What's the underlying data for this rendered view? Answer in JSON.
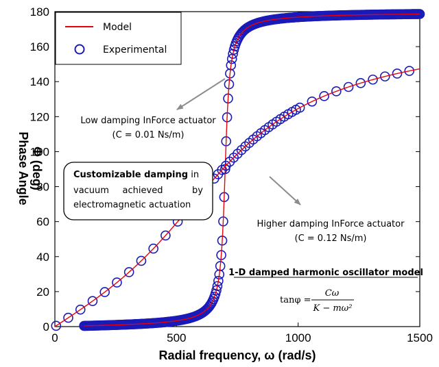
{
  "chart_data": {
    "type": "scatter",
    "xlabel": "Radial frequency, ω (rad/s)",
    "ylabel_line1": "Phase Angle",
    "ylabel_line2": "Φ (deg)",
    "xlim": [
      0,
      1500
    ],
    "ylim": [
      0,
      180
    ],
    "xticks": [
      0,
      500,
      1000,
      1500
    ],
    "yticks": [
      0,
      20,
      40,
      60,
      80,
      100,
      120,
      140,
      160,
      180
    ],
    "grid": false,
    "legend_position": "top-left",
    "legend": [
      {
        "label": "Model",
        "style": "line",
        "color": "#e8000b"
      },
      {
        "label": "Experimental",
        "style": "open-circle",
        "color": "#1a1ab8"
      }
    ],
    "series": [
      {
        "name": "Low damping InForce actuator (C = 0.01 Ns/m)",
        "model": "tan_phi",
        "omega_n": 700,
        "zeta": 0.02,
        "x_range": [
          120,
          1500
        ],
        "marker_step": 4
      },
      {
        "name": "Higher damping InForce actuator (C = 0.12 Ns/m)",
        "model": "tan_phi",
        "omega_n": 690,
        "zeta": 0.55,
        "x_range": [
          0,
          1500
        ],
        "marker_step_low": 50,
        "marker_step_mid": 16,
        "mid_range": [
          650,
          1000
        ]
      }
    ],
    "annotations": {
      "low_line1": "Low damping InForce actuator",
      "low_line2": "(C = 0.01 Ns/m)",
      "high_line1": "Higher damping InForce actuator",
      "high_line2": "(C = 0.12 Ns/m)",
      "box_bold": "Customizable damping",
      "box_line1_rest": " in",
      "box_line2_a": "vacuum",
      "box_line2_b": "achieved",
      "box_line2_c": "by",
      "box_line3": "electromagnetic actuation",
      "model_title": "1-D damped harmonic oscillator model",
      "eq_lhs": "tanφ =",
      "eq_num": "Cω",
      "eq_den": "K − mω²"
    },
    "colors": {
      "model": "#e8000b",
      "experimental": "#1a1ab8",
      "arrow": "#8c8c8c"
    }
  }
}
